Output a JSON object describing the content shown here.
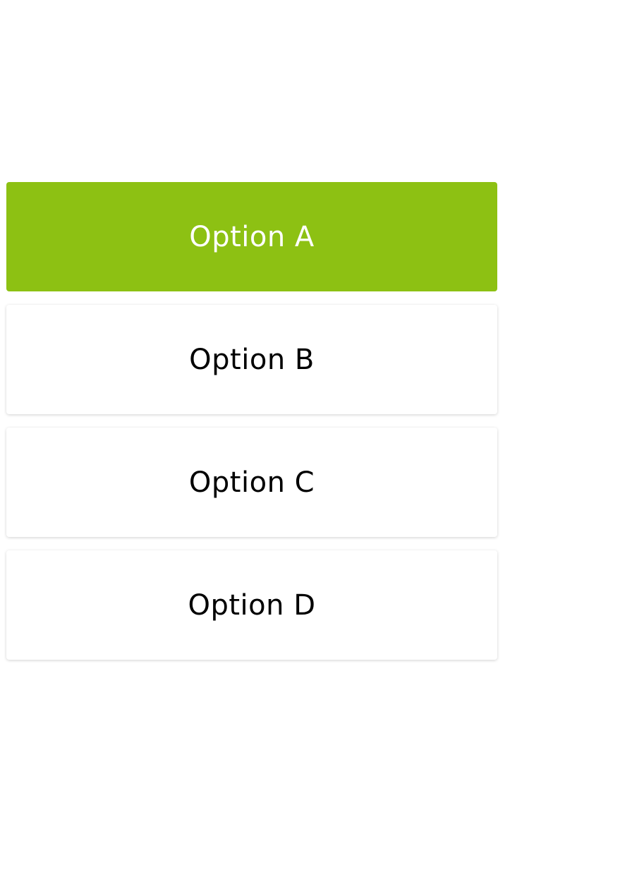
{
  "accent_color": "#8dc113",
  "options": [
    {
      "label": "Option A",
      "selected": true
    },
    {
      "label": "Option B",
      "selected": false
    },
    {
      "label": "Option C",
      "selected": false
    },
    {
      "label": "Option D",
      "selected": false
    }
  ]
}
